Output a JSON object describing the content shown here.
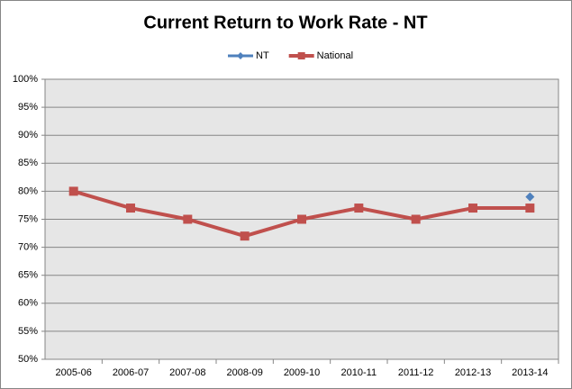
{
  "chart_data": {
    "type": "line",
    "title": "Current Return to Work Rate - NT",
    "categories": [
      "2005-06",
      "2006-07",
      "2007-08",
      "2008-09",
      "2009-10",
      "2010-11",
      "2011-12",
      "2012-13",
      "2013-14"
    ],
    "series": [
      {
        "name": "NT",
        "color": "#4f81bd",
        "marker": "diamond",
        "values": [
          null,
          null,
          null,
          null,
          null,
          null,
          null,
          null,
          79
        ]
      },
      {
        "name": "National",
        "color": "#c0504d",
        "marker": "square",
        "values": [
          80,
          77,
          75,
          72,
          75,
          77,
          75,
          77,
          77
        ]
      }
    ],
    "ylim": [
      50,
      100
    ],
    "yticks": [
      {
        "value": 50,
        "label": "50%"
      },
      {
        "value": 55,
        "label": "55%"
      },
      {
        "value": 60,
        "label": "60%"
      },
      {
        "value": 65,
        "label": "65%"
      },
      {
        "value": 70,
        "label": "70%"
      },
      {
        "value": 75,
        "label": "75%"
      },
      {
        "value": 80,
        "label": "80%"
      },
      {
        "value": 85,
        "label": "85%"
      },
      {
        "value": 90,
        "label": "90%"
      },
      {
        "value": 95,
        "label": "95%"
      },
      {
        "value": 100,
        "label": "100%"
      }
    ],
    "grid": true,
    "legend": "top"
  }
}
